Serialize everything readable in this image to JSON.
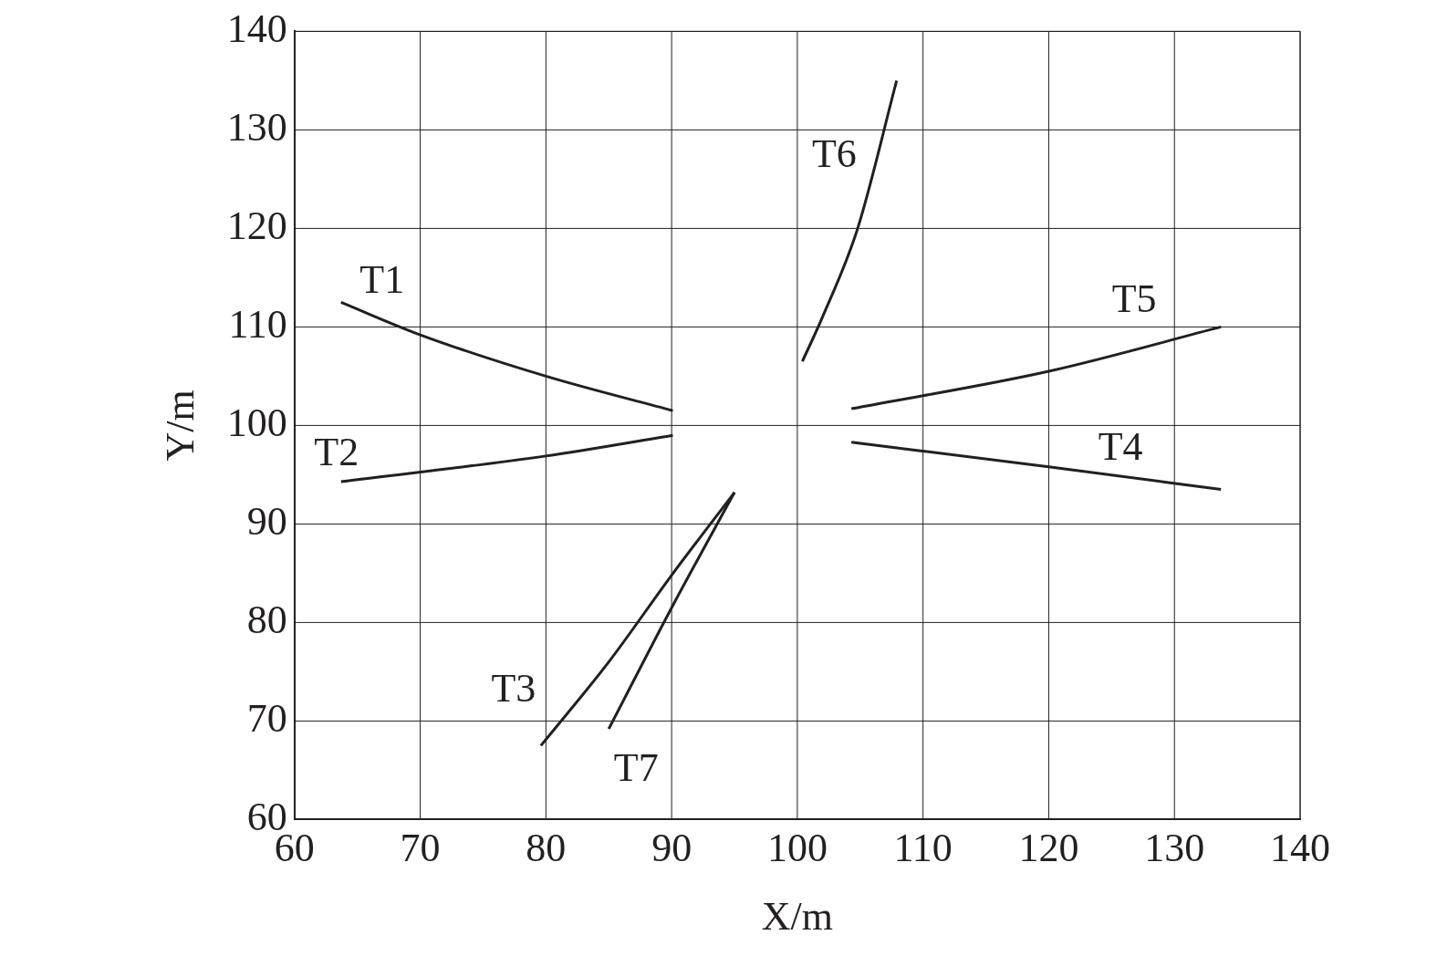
{
  "chart_data": {
    "type": "line",
    "xlabel": "X/m",
    "ylabel": "Y/m",
    "xlim": [
      60,
      140
    ],
    "ylim": [
      60,
      140
    ],
    "xticks": [
      60,
      70,
      80,
      90,
      100,
      110,
      120,
      130,
      140
    ],
    "yticks": [
      60,
      70,
      80,
      90,
      100,
      110,
      120,
      130,
      140
    ],
    "grid": true,
    "legend": false,
    "marker": "none",
    "line_style": "solid",
    "series": [
      {
        "name": "T1",
        "color": "#231f20",
        "x": [
          63.7,
          70,
          80,
          90.1
        ],
        "values": [
          112.5,
          109.2,
          105,
          101.5
        ]
      },
      {
        "name": "T2",
        "color": "#231f20",
        "x": [
          63.7,
          80,
          90.1
        ],
        "values": [
          94.3,
          96.9,
          99
        ]
      },
      {
        "name": "T3",
        "color": "#231f20",
        "x": [
          79.6,
          85,
          90,
          95
        ],
        "values": [
          67.5,
          76,
          84.8,
          93.2
        ]
      },
      {
        "name": "T4",
        "color": "#231f20",
        "x": [
          104.3,
          120,
          133.7
        ],
        "values": [
          98.3,
          95.8,
          93.5
        ]
      },
      {
        "name": "T5",
        "color": "#231f20",
        "x": [
          104.3,
          120,
          133.7
        ],
        "values": [
          101.7,
          105.5,
          110
        ]
      },
      {
        "name": "T6",
        "color": "#231f20",
        "x": [
          100.4,
          102,
          104.8,
          107.9
        ],
        "values": [
          106.5,
          111,
          120,
          135
        ]
      },
      {
        "name": "T7",
        "color": "#231f20",
        "x": [
          85,
          90,
          95
        ],
        "values": [
          69.2,
          81.5,
          93.2
        ]
      }
    ]
  }
}
